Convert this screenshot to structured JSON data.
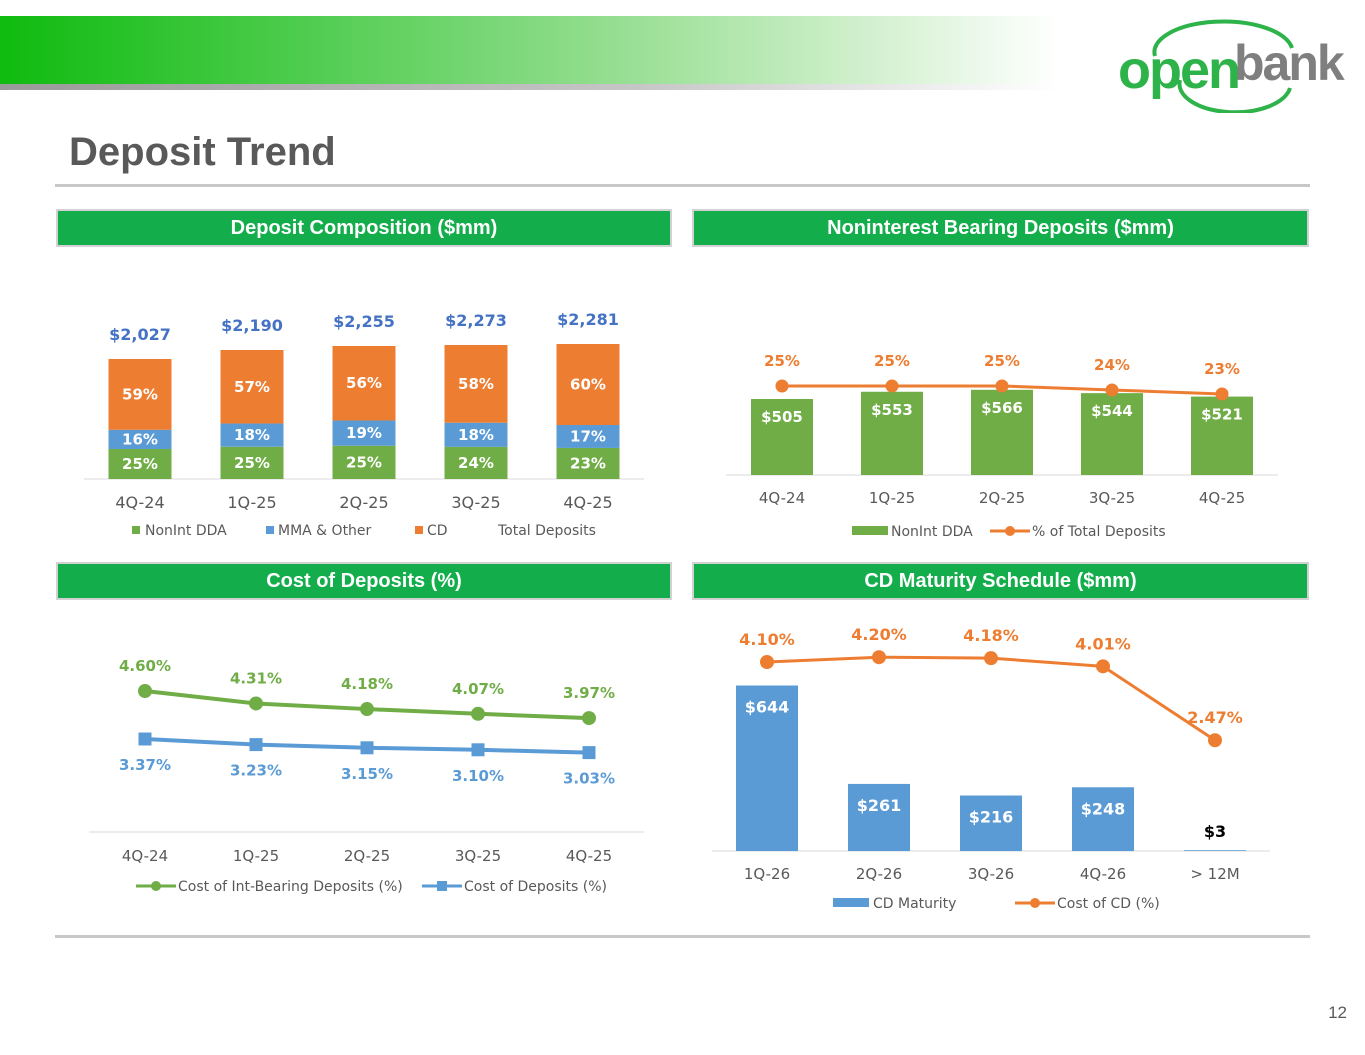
{
  "header": {
    "logo_word_1": "open",
    "logo_word_2": "bank",
    "page_title": "Deposit Trend",
    "page_number": "12"
  },
  "colors": {
    "green": "#70ad47",
    "blue": "#5b9bd5",
    "orange": "#ed7d31",
    "header_green": "#13ad4b",
    "total_blue": "#4472c4"
  },
  "chart_data": [
    {
      "id": "composition",
      "type": "bar",
      "title": "Deposit Composition ($mm)",
      "categories": [
        "4Q-24",
        "1Q-25",
        "2Q-25",
        "3Q-25",
        "4Q-25"
      ],
      "series": [
        {
          "name": "NonInt DDA",
          "values": [
            25,
            25,
            25,
            24,
            23
          ],
          "labels": [
            "25%",
            "25%",
            "25%",
            "24%",
            "23%"
          ]
        },
        {
          "name": "MMA & Other",
          "values": [
            16,
            18,
            19,
            18,
            17
          ],
          "labels": [
            "16%",
            "18%",
            "19%",
            "18%",
            "17%"
          ]
        },
        {
          "name": "CD",
          "values": [
            59,
            57,
            56,
            58,
            60
          ],
          "labels": [
            "59%",
            "57%",
            "56%",
            "58%",
            "60%"
          ]
        }
      ],
      "totals": {
        "name": "Total Deposits",
        "values": [
          2027,
          2190,
          2255,
          2273,
          2281
        ],
        "labels": [
          "$2,027",
          "$2,190",
          "$2,255",
          "$2,273",
          "$2,281"
        ]
      }
    },
    {
      "id": "nonint",
      "type": "bar",
      "title": "Noninterest Bearing Deposits ($mm)",
      "categories": [
        "4Q-24",
        "1Q-25",
        "2Q-25",
        "3Q-25",
        "4Q-25"
      ],
      "series": [
        {
          "name": "NonInt DDA",
          "values": [
            505,
            553,
            566,
            544,
            521
          ],
          "labels": [
            "$505",
            "$553",
            "$566",
            "$544",
            "$521"
          ]
        },
        {
          "name": "% of Total Deposits",
          "type": "line",
          "values": [
            25,
            25,
            25,
            24,
            23
          ],
          "labels": [
            "25%",
            "25%",
            "25%",
            "24%",
            "23%"
          ]
        }
      ]
    },
    {
      "id": "cost",
      "type": "line",
      "title": "Cost of Deposits (%)",
      "categories": [
        "4Q-24",
        "1Q-25",
        "2Q-25",
        "3Q-25",
        "4Q-25"
      ],
      "series": [
        {
          "name": "Cost of Int-Bearing Deposits (%)",
          "values": [
            4.6,
            4.31,
            4.18,
            4.07,
            3.97
          ],
          "labels": [
            "4.60%",
            "4.31%",
            "4.18%",
            "4.07%",
            "3.97%"
          ]
        },
        {
          "name": "Cost of Deposits (%)",
          "values": [
            3.37,
            3.23,
            3.15,
            3.1,
            3.03
          ],
          "labels": [
            "3.37%",
            "3.23%",
            "3.15%",
            "3.10%",
            "3.03%"
          ]
        }
      ]
    },
    {
      "id": "cd",
      "type": "bar",
      "title": "CD Maturity Schedule ($mm)",
      "categories": [
        "1Q-26",
        "2Q-26",
        "3Q-26",
        "4Q-26",
        "> 12M"
      ],
      "series": [
        {
          "name": "CD Maturity",
          "values": [
            644,
            261,
            216,
            248,
            3
          ],
          "labels": [
            "$644",
            "$261",
            "$216",
            "$248",
            "$3"
          ]
        },
        {
          "name": "Cost of CD (%)",
          "type": "line",
          "values": [
            4.1,
            4.2,
            4.18,
            4.01,
            2.47
          ],
          "labels": [
            "4.10%",
            "4.20%",
            "4.18%",
            "4.01%",
            "2.47%"
          ]
        }
      ]
    }
  ]
}
